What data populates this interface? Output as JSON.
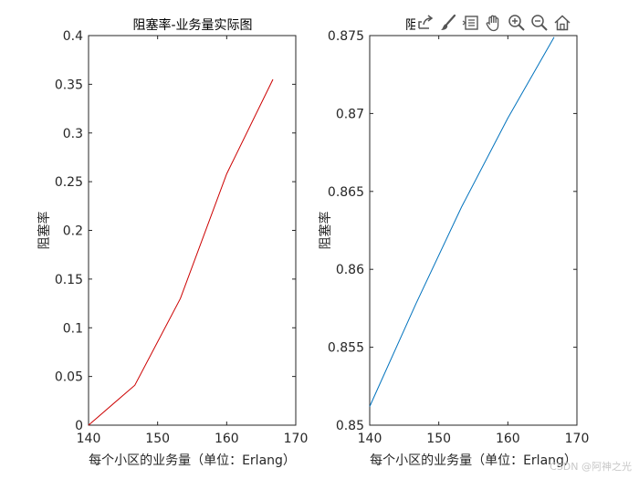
{
  "chart_data": [
    {
      "type": "line",
      "title": "阻塞率-业务量实际图",
      "xlabel": "每个小区的业务量（单位：Erlang）",
      "ylabel": "阻塞率",
      "xlim": [
        140,
        170
      ],
      "ylim": [
        0,
        0.4
      ],
      "xticks": [
        "140",
        "150",
        "160",
        "170"
      ],
      "yticks": [
        "0",
        "0.05",
        "0.1",
        "0.15",
        "0.2",
        "0.25",
        "0.3",
        "0.35",
        "0.4"
      ],
      "series": [
        {
          "color": "#cc0000",
          "x": [
            140,
            146.7,
            153.3,
            160,
            166.7
          ],
          "y": [
            0,
            0.041,
            0.13,
            0.258,
            0.355
          ]
        }
      ]
    },
    {
      "type": "line",
      "title": "阻",
      "xlabel": "每个小区的业务量（单位：Erlang）",
      "ylabel": "阻塞率",
      "xlim": [
        140,
        170
      ],
      "ylim": [
        0.85,
        0.875
      ],
      "xticks": [
        "140",
        "150",
        "160",
        "170"
      ],
      "yticks": [
        "0.85",
        "0.855",
        "0.86",
        "0.865",
        "0.87",
        "0.875"
      ],
      "series": [
        {
          "color": "#0072bd",
          "x": [
            140,
            146.7,
            153.3,
            160,
            166.7
          ],
          "y": [
            0.8512,
            0.8578,
            0.864,
            0.8697,
            0.8749
          ]
        }
      ]
    }
  ],
  "toolbar": {
    "icons": [
      "export-icon",
      "brush-icon",
      "datatip-icon",
      "pan-icon",
      "zoom-in-icon",
      "zoom-out-icon",
      "home-icon"
    ]
  },
  "watermark": "CSDN @阿神之光"
}
